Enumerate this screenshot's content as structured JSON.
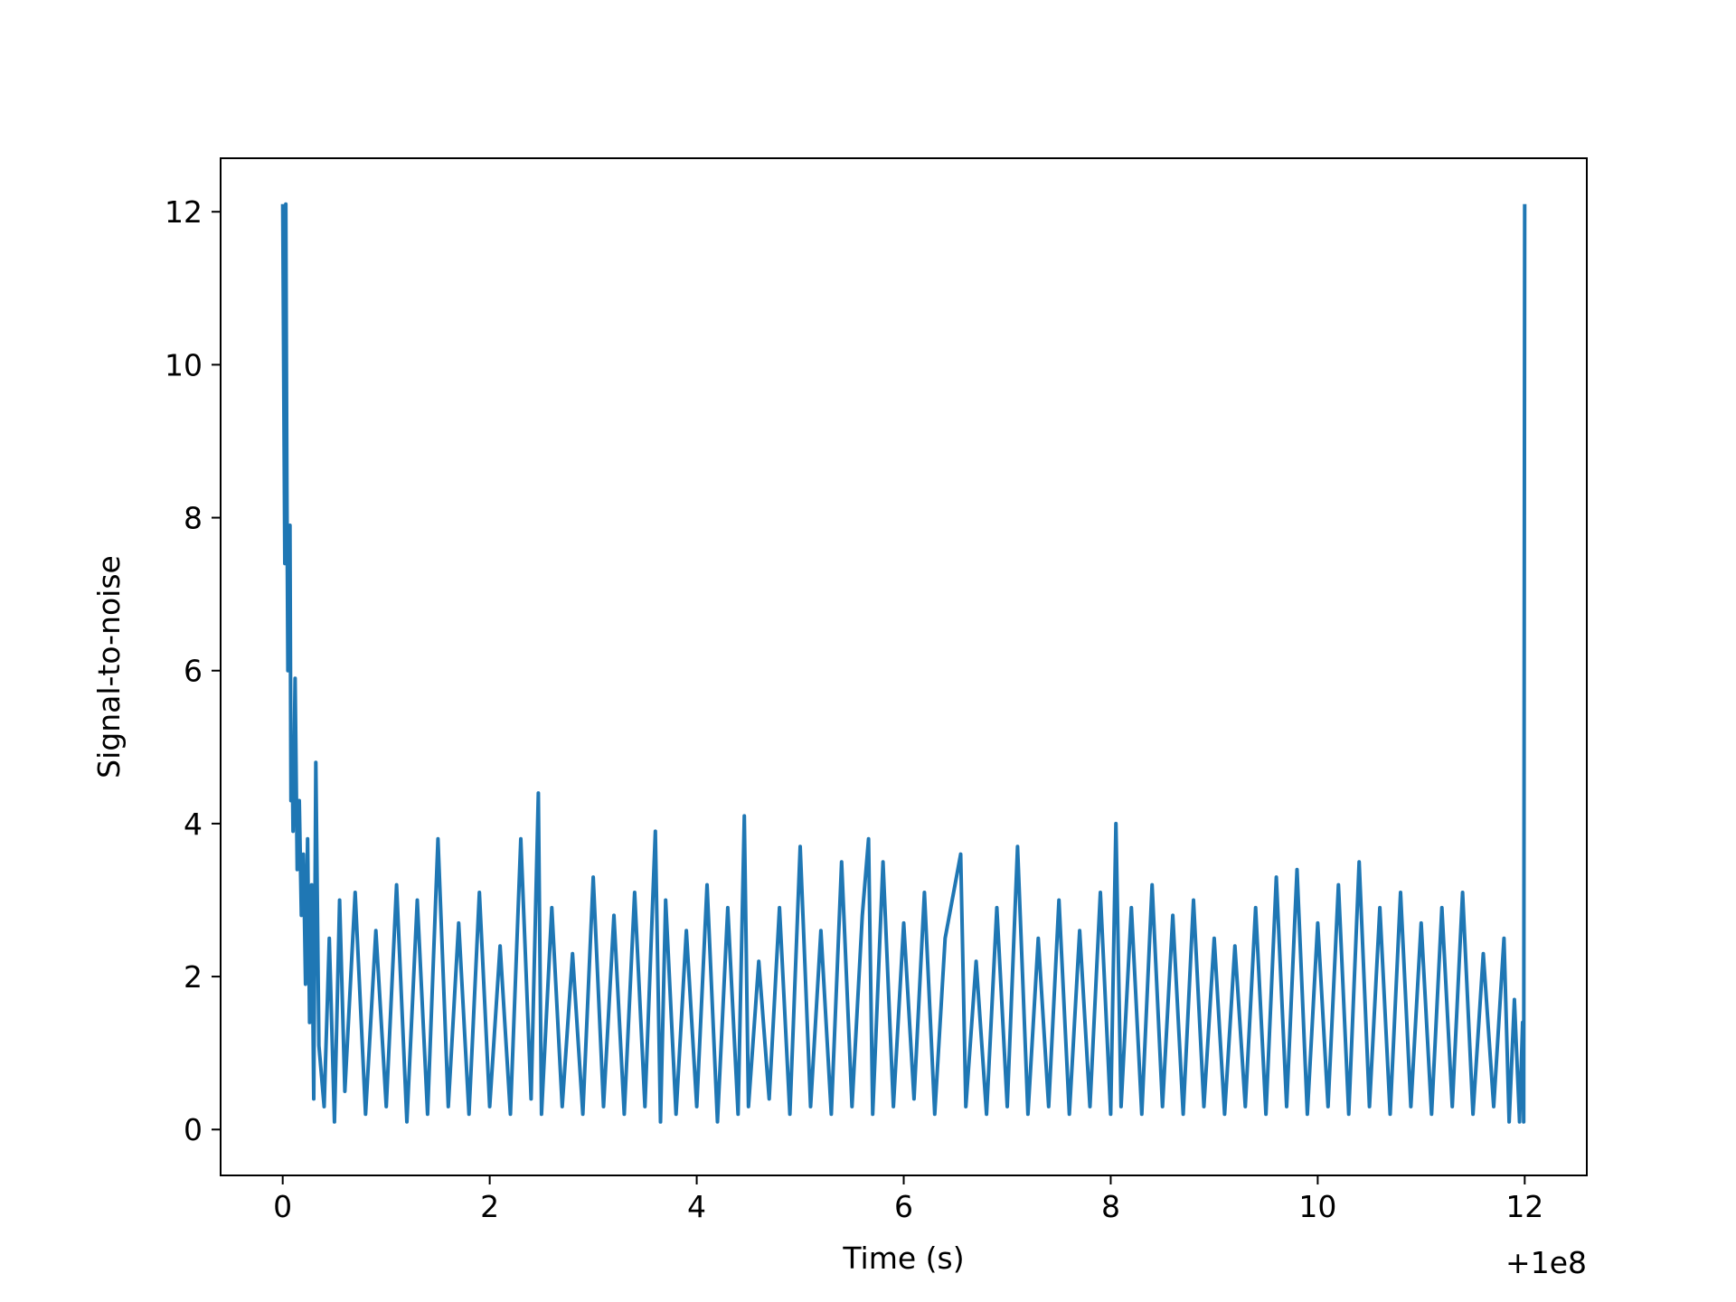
{
  "chart_data": {
    "type": "line",
    "title": "",
    "xlabel": "Time (s)",
    "ylabel": "Signal-to-noise",
    "x_offset_label": "+1e8",
    "xlim": [
      -0.6,
      12.6
    ],
    "ylim": [
      -0.6,
      12.7
    ],
    "x_ticks": [
      0,
      2,
      4,
      6,
      8,
      10,
      12
    ],
    "x_tick_labels": [
      "0",
      "2",
      "4",
      "6",
      "8",
      "10",
      "12"
    ],
    "y_ticks": [
      0,
      2,
      4,
      6,
      8,
      10,
      12
    ],
    "y_tick_labels": [
      "0",
      "2",
      "4",
      "6",
      "8",
      "10",
      "12"
    ],
    "grid": false,
    "series": [
      {
        "color": "#1f77b4",
        "x": [
          0.0,
          0.02,
          0.03,
          0.04,
          0.05,
          0.07,
          0.08,
          0.09,
          0.1,
          0.12,
          0.14,
          0.16,
          0.18,
          0.2,
          0.22,
          0.24,
          0.26,
          0.28,
          0.3,
          0.32,
          0.35,
          0.4,
          0.45,
          0.5,
          0.55,
          0.6,
          0.7,
          0.8,
          0.9,
          1.0,
          1.1,
          1.2,
          1.3,
          1.4,
          1.5,
          1.6,
          1.7,
          1.8,
          1.9,
          2.0,
          2.1,
          2.2,
          2.3,
          2.4,
          2.47,
          2.5,
          2.6,
          2.7,
          2.8,
          2.9,
          3.0,
          3.1,
          3.2,
          3.3,
          3.4,
          3.5,
          3.6,
          3.65,
          3.7,
          3.8,
          3.9,
          4.0,
          4.1,
          4.2,
          4.3,
          4.4,
          4.46,
          4.5,
          4.6,
          4.7,
          4.8,
          4.9,
          5.0,
          5.1,
          5.2,
          5.3,
          5.4,
          5.5,
          5.6,
          5.66,
          5.7,
          5.8,
          5.9,
          6.0,
          6.1,
          6.2,
          6.3,
          6.4,
          6.55,
          6.6,
          6.7,
          6.8,
          6.9,
          7.0,
          7.1,
          7.2,
          7.3,
          7.4,
          7.5,
          7.6,
          7.7,
          7.8,
          7.9,
          8.0,
          8.05,
          8.1,
          8.2,
          8.3,
          8.4,
          8.5,
          8.6,
          8.7,
          8.8,
          8.9,
          9.0,
          9.1,
          9.2,
          9.3,
          9.4,
          9.5,
          9.6,
          9.7,
          9.8,
          9.9,
          10.0,
          10.1,
          10.2,
          10.3,
          10.4,
          10.5,
          10.6,
          10.7,
          10.8,
          10.9,
          11.0,
          11.1,
          11.2,
          11.3,
          11.4,
          11.5,
          11.6,
          11.7,
          11.8,
          11.85,
          11.9,
          11.95,
          11.98,
          11.99,
          12.0
        ],
        "values": [
          12.1,
          7.4,
          12.1,
          8.4,
          6.0,
          7.9,
          4.3,
          5.1,
          3.9,
          5.9,
          3.4,
          4.3,
          2.8,
          3.6,
          1.9,
          3.8,
          1.4,
          3.2,
          0.4,
          4.8,
          1.1,
          0.3,
          2.5,
          0.1,
          3.0,
          0.5,
          3.1,
          0.2,
          2.6,
          0.3,
          3.2,
          0.1,
          3.0,
          0.2,
          3.8,
          0.3,
          2.7,
          0.2,
          3.1,
          0.3,
          2.4,
          0.2,
          3.8,
          0.4,
          4.4,
          0.2,
          2.9,
          0.3,
          2.3,
          0.2,
          3.3,
          0.3,
          2.8,
          0.2,
          3.1,
          0.3,
          3.9,
          0.1,
          3.0,
          0.2,
          2.6,
          0.3,
          3.2,
          0.1,
          2.9,
          0.2,
          4.1,
          0.3,
          2.2,
          0.4,
          2.9,
          0.2,
          3.7,
          0.3,
          2.6,
          0.2,
          3.5,
          0.3,
          2.8,
          3.8,
          0.2,
          3.5,
          0.3,
          2.7,
          0.4,
          3.1,
          0.2,
          2.5,
          3.6,
          0.3,
          2.2,
          0.2,
          2.9,
          0.3,
          3.7,
          0.2,
          2.5,
          0.3,
          3.0,
          0.2,
          2.6,
          0.3,
          3.1,
          0.2,
          4.0,
          0.3,
          2.9,
          0.2,
          3.2,
          0.3,
          2.8,
          0.2,
          3.0,
          0.3,
          2.5,
          0.2,
          2.4,
          0.3,
          2.9,
          0.2,
          3.3,
          0.3,
          3.4,
          0.2,
          2.7,
          0.3,
          3.2,
          0.2,
          3.5,
          0.3,
          2.9,
          0.2,
          3.1,
          0.3,
          2.7,
          0.2,
          2.9,
          0.3,
          3.1,
          0.2,
          2.3,
          0.3,
          2.5,
          0.1,
          1.7,
          0.1,
          1.4,
          0.1,
          12.1
        ]
      }
    ]
  }
}
